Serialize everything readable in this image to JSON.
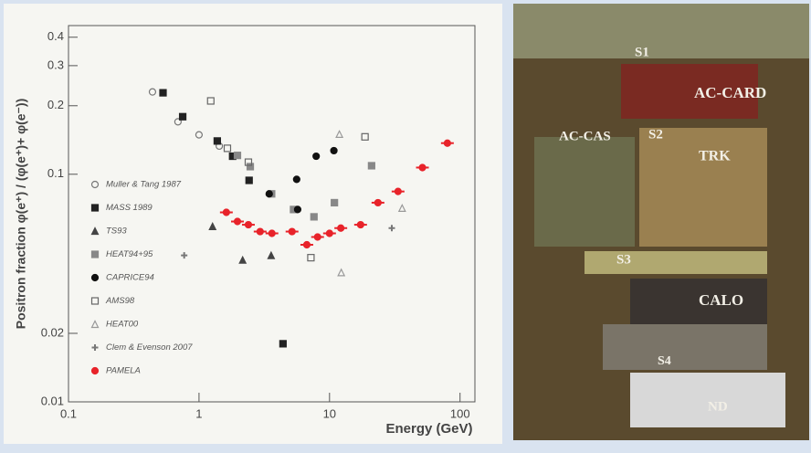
{
  "chart_data": {
    "type": "scatter",
    "x_label": "Energy (GeV)",
    "y_label": "Positron fraction   φ(e⁺) / (φ(e⁺)+ φ(e⁻))",
    "xscale": "log",
    "yscale": "log",
    "xlim": [
      0.1,
      130
    ],
    "ylim": [
      0.01,
      0.45
    ],
    "xticks": [
      0.1,
      1,
      10,
      100
    ],
    "yticks": [
      0.01,
      0.02,
      0.1,
      0.2,
      0.3,
      0.4
    ],
    "legend": "left",
    "series": [
      {
        "name": "Muller & Tang 1987",
        "color": "#777777",
        "marker": "circle",
        "filled": false,
        "x": [
          0.44,
          0.69,
          1,
          1.43
        ],
        "values": [
          0.23,
          0.17,
          0.149,
          0.133
        ]
      },
      {
        "name": "MASS 1989",
        "color": "#222222",
        "marker": "square",
        "filled": true,
        "x": [
          0.53,
          0.75,
          1.38,
          1.81,
          2.42,
          4.4
        ],
        "values": [
          0.228,
          0.179,
          0.14,
          0.12,
          0.094,
          0.018
        ]
      },
      {
        "name": "TS93",
        "color": "#444444",
        "marker": "triangle",
        "filled": true,
        "x": [
          1.27,
          2.16,
          3.57
        ],
        "values": [
          0.059,
          0.042,
          0.044
        ]
      },
      {
        "name": "HEAT94+95",
        "color": "#888888",
        "marker": "square",
        "filled": true,
        "x": [
          1.97,
          2.47,
          3.6,
          5.3,
          7.6,
          10.9,
          21
        ],
        "values": [
          0.121,
          0.108,
          0.082,
          0.07,
          0.065,
          0.075,
          0.109
        ]
      },
      {
        "name": "CAPRICE94",
        "color": "#111111",
        "marker": "circle",
        "filled": true,
        "x": [
          3.45,
          5.6,
          7.9,
          10.8,
          5.7
        ],
        "values": [
          0.082,
          0.095,
          0.12,
          0.127,
          0.07
        ]
      },
      {
        "name": "AMS98",
        "color": "#666666",
        "marker": "square",
        "filled": false,
        "x": [
          1.23,
          1.65,
          2.39,
          7.2,
          18.7
        ],
        "values": [
          0.21,
          0.13,
          0.113,
          0.043,
          0.146
        ]
      },
      {
        "name": "HEAT00",
        "color": "#999999",
        "marker": "triangle",
        "filled": false,
        "x": [
          11.9,
          12.3,
          36
        ],
        "values": [
          0.15,
          0.037,
          0.071
        ]
      },
      {
        "name": "Clem & Evenson 2007",
        "color": "#777777",
        "marker": "star",
        "filled": true,
        "x": [
          0.77,
          30
        ],
        "values": [
          0.044,
          0.058
        ]
      },
      {
        "name": "PAMELA",
        "color": "#e8232a",
        "marker": "circle",
        "filled": true,
        "x": [
          1.62,
          1.97,
          2.39,
          2.94,
          3.62,
          5.16,
          6.7,
          8.1,
          10,
          12.2,
          17.3,
          23.5,
          33.5,
          51.5,
          80
        ],
        "values": [
          0.068,
          0.062,
          0.06,
          0.056,
          0.055,
          0.056,
          0.049,
          0.053,
          0.055,
          0.058,
          0.06,
          0.075,
          0.084,
          0.107,
          0.137
        ]
      }
    ]
  },
  "photo": {
    "labels": [
      "S1",
      "AC-CARD",
      "AC-CAS",
      "S2",
      "TRK",
      "S3",
      "CALO",
      "S4",
      "ND"
    ]
  }
}
